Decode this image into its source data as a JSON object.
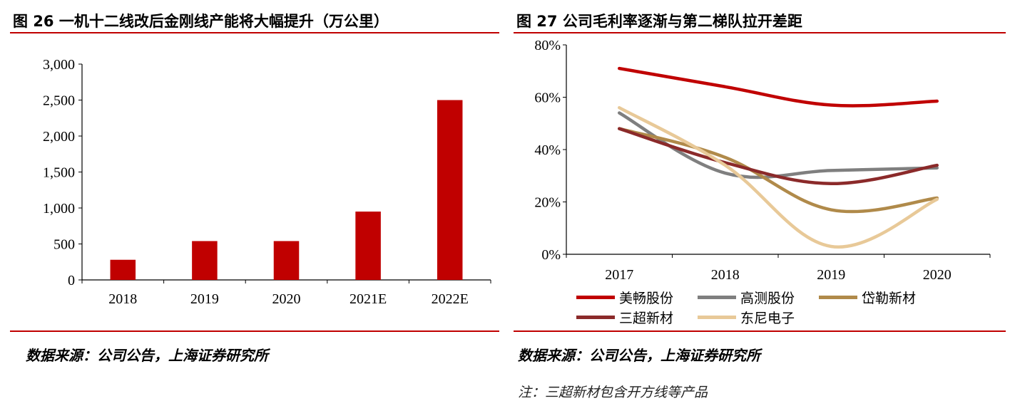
{
  "left": {
    "title": "图 26 一机十二线改后金刚线产能将大幅提升（万公里）",
    "source": "数据来源：公司公告，上海证券研究所",
    "chart_data": {
      "type": "bar",
      "categories": [
        "2018",
        "2019",
        "2020",
        "2021E",
        "2022E"
      ],
      "values": [
        280,
        540,
        540,
        950,
        2500
      ],
      "ylim": [
        0,
        3000
      ],
      "yticks": [
        "0",
        "500",
        "1,000",
        "1,500",
        "2,000",
        "2,500",
        "3,000"
      ],
      "ytick_values": [
        0,
        500,
        1000,
        1500,
        2000,
        2500,
        3000
      ],
      "color": "#c00000",
      "grid": false,
      "xlabel": "",
      "ylabel": ""
    }
  },
  "right": {
    "title": "图 27 公司毛利率逐渐与第二梯队拉开差距",
    "source": "数据来源：公司公告，上海证券研究所",
    "note": "注：三超新材包含开方线等产品",
    "chart_data": {
      "type": "line",
      "x": [
        "2017",
        "2018",
        "2019",
        "2020"
      ],
      "ylim": [
        0,
        80
      ],
      "yticks": [
        "0%",
        "20%",
        "40%",
        "60%",
        "80%"
      ],
      "ytick_values": [
        0,
        20,
        40,
        60,
        80
      ],
      "grid": false,
      "legend_position": "bottom",
      "series": [
        {
          "name": "美畅股份",
          "values": [
            71,
            64,
            57,
            58.5
          ],
          "color": "#c00000"
        },
        {
          "name": "高测股份",
          "values": [
            54,
            31,
            32,
            33
          ],
          "color": "#7f7f7f"
        },
        {
          "name": "岱勒新材",
          "values": [
            48,
            37,
            17,
            21.5
          ],
          "color": "#b08a4a"
        },
        {
          "name": "三超新材",
          "values": [
            48,
            35,
            27,
            34
          ],
          "color": "#8b2a2a"
        },
        {
          "name": "东尼电子",
          "values": [
            56,
            34,
            3,
            21
          ],
          "color": "#e8c998"
        }
      ]
    }
  }
}
